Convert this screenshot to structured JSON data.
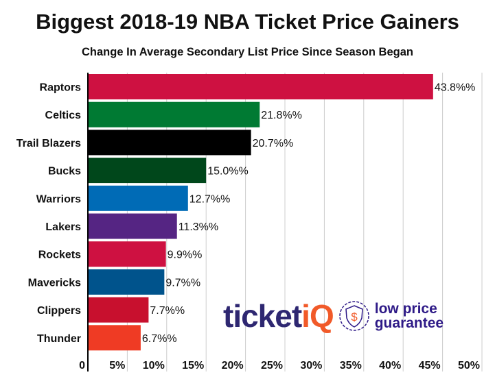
{
  "chart_data": {
    "type": "bar",
    "orientation": "horizontal",
    "title": "Biggest 2018-19 NBA Ticket Price Gainers",
    "subtitle": "Change In Average Secondary List Price Since Season Began",
    "categories": [
      "Raptors",
      "Celtics",
      "Trail Blazers",
      "Bucks",
      "Warriors",
      "Lakers",
      "Rockets",
      "Mavericks",
      "Clippers",
      "Thunder"
    ],
    "values": [
      43.8,
      21.8,
      20.7,
      15.0,
      12.7,
      11.3,
      9.9,
      9.7,
      7.7,
      6.7
    ],
    "data_labels": [
      "43.8%%",
      "21.8%%",
      "20.7%%",
      "15.0%%",
      "12.7%%",
      "11.3%%",
      "9.9%%",
      "9.7%%",
      "7.7%%",
      "6.7%%"
    ],
    "colors": [
      "#CE1141",
      "#007A33",
      "#000000",
      "#00471B",
      "#006BB6",
      "#552583",
      "#CE1141",
      "#00538C",
      "#C8102E",
      "#EF3B24"
    ],
    "xlim": [
      0,
      50
    ],
    "x_ticks": [
      0,
      5,
      10,
      15,
      20,
      25,
      30,
      35,
      40,
      45,
      50
    ],
    "x_tick_labels": [
      "0",
      "5%",
      "10%",
      "15%",
      "20%",
      "25%",
      "30%",
      "35%",
      "40%",
      "45%",
      "50%"
    ],
    "grid": true,
    "xlabel": "",
    "ylabel": ""
  },
  "logo": {
    "brand_main": "ticket",
    "brand_accent": "iQ",
    "tagline_1": "low price",
    "tagline_2": "guarantee",
    "dollar": "$"
  }
}
